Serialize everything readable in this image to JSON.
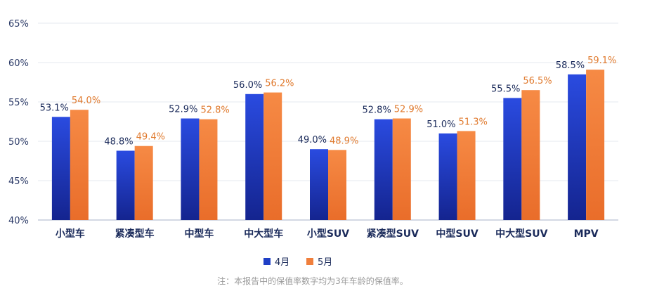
{
  "chart_data": {
    "type": "bar",
    "categories": [
      "小型车",
      "紧凑型车",
      "中型车",
      "中大型车",
      "小型SUV",
      "紧凑型SUV",
      "中型SUV",
      "中大型SUV",
      "MPV"
    ],
    "series": [
      {
        "name": "4月",
        "values": [
          53.1,
          48.8,
          52.9,
          56.0,
          49.0,
          52.8,
          51.0,
          55.5,
          58.5
        ],
        "labels": [
          "53.1%",
          "48.8%",
          "52.9%",
          "56.0%",
          "49.0%",
          "52.8%",
          "51.0%",
          "55.5%",
          "58.5%"
        ],
        "color": "#1f3fc6",
        "label_color": "#1a2a5a"
      },
      {
        "name": "5月",
        "values": [
          54.0,
          49.4,
          52.8,
          56.2,
          48.9,
          52.9,
          51.3,
          56.5,
          59.1
        ],
        "labels": [
          "54.0%",
          "49.4%",
          "52.8%",
          "56.2%",
          "48.9%",
          "52.9%",
          "51.3%",
          "56.5%",
          "59.1%"
        ],
        "color": "#f07f3c",
        "label_color": "#e07a2e"
      }
    ],
    "y_ticks": [
      "40%",
      "45%",
      "50%",
      "55%",
      "60%",
      "65%"
    ],
    "y_tick_values": [
      40,
      45,
      50,
      55,
      60,
      65
    ],
    "ylim": [
      40,
      65
    ],
    "grid": true,
    "legend_position": "bottom-center",
    "title": "",
    "xlabel": "",
    "ylabel": ""
  },
  "footnote": "注：本报告中的保值率数字均为3年车龄的保值率。"
}
